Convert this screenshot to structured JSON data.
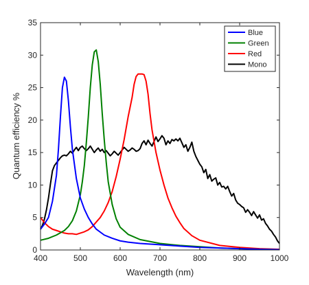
{
  "chart_data": {
    "type": "line",
    "title": "",
    "xlabel": "Wavelength (nm)",
    "ylabel": "Quantum efficiency %",
    "xlim": [
      400,
      1000
    ],
    "ylim": [
      0,
      35
    ],
    "xticks": [
      "400",
      "500",
      "600",
      "700",
      "800",
      "900",
      "1000"
    ],
    "yticks": [
      "0",
      "5",
      "10",
      "15",
      "20",
      "25",
      "30",
      "35"
    ],
    "grid": false,
    "legend_position": "top-right",
    "series": [
      {
        "name": "Blue",
        "color": "#0000ff",
        "x": [
          400,
          410,
          420,
          430,
          440,
          445,
          450,
          455,
          460,
          465,
          470,
          475,
          480,
          490,
          500,
          510,
          520,
          530,
          540,
          560,
          580,
          600,
          620,
          650,
          700,
          750,
          800,
          850,
          900,
          950,
          1000
        ],
        "y": [
          3.2,
          4.0,
          5.0,
          7.5,
          11.5,
          15.5,
          20.5,
          25.0,
          26.6,
          26.0,
          23.0,
          19.0,
          15.5,
          11.0,
          8.0,
          6.3,
          5.0,
          4.0,
          3.2,
          2.3,
          1.8,
          1.4,
          1.2,
          1.0,
          0.8,
          0.6,
          0.4,
          0.3,
          0.2,
          0.1,
          0.05
        ]
      },
      {
        "name": "Green",
        "color": "#008000",
        "x": [
          400,
          420,
          440,
          460,
          470,
          480,
          490,
          500,
          505,
          510,
          515,
          520,
          525,
          530,
          535,
          540,
          545,
          550,
          555,
          560,
          565,
          570,
          580,
          590,
          600,
          620,
          650,
          700,
          750,
          800,
          850,
          900,
          950,
          1000
        ],
        "y": [
          1.5,
          1.8,
          2.3,
          3.0,
          3.6,
          4.5,
          6.0,
          8.5,
          10.5,
          13.0,
          16.5,
          20.5,
          25.0,
          28.5,
          30.5,
          30.8,
          29.0,
          25.5,
          21.0,
          17.0,
          13.5,
          10.5,
          7.0,
          4.8,
          3.5,
          2.4,
          1.6,
          1.0,
          0.7,
          0.5,
          0.3,
          0.2,
          0.1,
          0.05
        ]
      },
      {
        "name": "Red",
        "color": "#ff0000",
        "x": [
          400,
          410,
          420,
          430,
          440,
          450,
          460,
          470,
          480,
          490,
          500,
          510,
          520,
          530,
          540,
          550,
          560,
          570,
          580,
          590,
          600,
          610,
          620,
          630,
          635,
          640,
          645,
          650,
          655,
          660,
          665,
          670,
          675,
          680,
          690,
          700,
          710,
          720,
          730,
          740,
          750,
          760,
          780,
          800,
          850,
          900,
          950,
          1000
        ],
        "y": [
          5.0,
          4.2,
          3.6,
          3.2,
          3.0,
          2.8,
          2.6,
          2.5,
          2.5,
          2.4,
          2.6,
          2.8,
          3.1,
          3.6,
          4.3,
          5.0,
          6.0,
          7.3,
          9.0,
          11.3,
          14.0,
          17.0,
          20.5,
          23.5,
          25.5,
          26.7,
          27.1,
          27.1,
          27.1,
          27.0,
          26.0,
          24.0,
          21.0,
          18.5,
          15.0,
          12.3,
          10.0,
          8.0,
          6.5,
          5.2,
          4.2,
          3.3,
          2.2,
          1.5,
          0.7,
          0.4,
          0.2,
          0.1
        ]
      },
      {
        "name": "Mono",
        "color": "#000000",
        "x": [
          400,
          405,
          410,
          415,
          420,
          425,
          430,
          435,
          440,
          445,
          450,
          455,
          460,
          465,
          470,
          475,
          480,
          485,
          490,
          495,
          500,
          505,
          510,
          515,
          520,
          525,
          530,
          535,
          540,
          545,
          550,
          555,
          560,
          565,
          570,
          575,
          580,
          585,
          590,
          595,
          600,
          605,
          610,
          615,
          620,
          625,
          630,
          635,
          640,
          645,
          650,
          655,
          660,
          665,
          670,
          675,
          680,
          685,
          690,
          695,
          700,
          705,
          710,
          715,
          720,
          725,
          730,
          735,
          740,
          745,
          750,
          755,
          760,
          765,
          770,
          775,
          780,
          785,
          790,
          795,
          800,
          805,
          810,
          815,
          820,
          825,
          830,
          835,
          840,
          845,
          850,
          855,
          860,
          865,
          870,
          875,
          880,
          885,
          890,
          895,
          900,
          905,
          910,
          915,
          920,
          925,
          930,
          935,
          940,
          945,
          950,
          955,
          960,
          965,
          970,
          975,
          980,
          985,
          990,
          995,
          1000
        ],
        "y": [
          3.2,
          3.8,
          4.8,
          6.2,
          8.0,
          10.2,
          12.2,
          13.0,
          13.4,
          13.8,
          14.2,
          14.5,
          14.6,
          14.5,
          14.8,
          15.2,
          14.9,
          15.4,
          15.8,
          15.3,
          15.8,
          16.0,
          15.6,
          15.3,
          15.6,
          16.0,
          15.5,
          15.0,
          15.4,
          15.7,
          15.2,
          15.5,
          15.0,
          15.3,
          14.9,
          14.5,
          14.8,
          15.2,
          14.9,
          14.6,
          15.0,
          15.4,
          15.8,
          15.5,
          15.2,
          15.4,
          15.7,
          15.5,
          15.2,
          15.3,
          15.6,
          16.4,
          16.8,
          16.2,
          16.9,
          16.4,
          16.0,
          16.7,
          17.4,
          16.7,
          17.1,
          17.6,
          17.2,
          16.2,
          16.8,
          16.4,
          17.0,
          16.8,
          17.1,
          16.8,
          17.2,
          16.5,
          15.8,
          16.2,
          15.2,
          15.8,
          16.6,
          15.2,
          14.4,
          13.8,
          13.2,
          12.8,
          11.9,
          12.4,
          11.0,
          11.6,
          10.6,
          10.9,
          11.1,
          10.0,
          10.4,
          9.7,
          9.8,
          9.4,
          9.8,
          9.0,
          8.3,
          8.7,
          7.7,
          7.2,
          7.0,
          6.7,
          6.5,
          5.8,
          6.2,
          5.8,
          5.3,
          5.9,
          5.4,
          4.9,
          5.4,
          4.6,
          4.8,
          4.1,
          3.7,
          3.2,
          2.9,
          2.4,
          2.0,
          1.4,
          1.0
        ]
      }
    ]
  }
}
